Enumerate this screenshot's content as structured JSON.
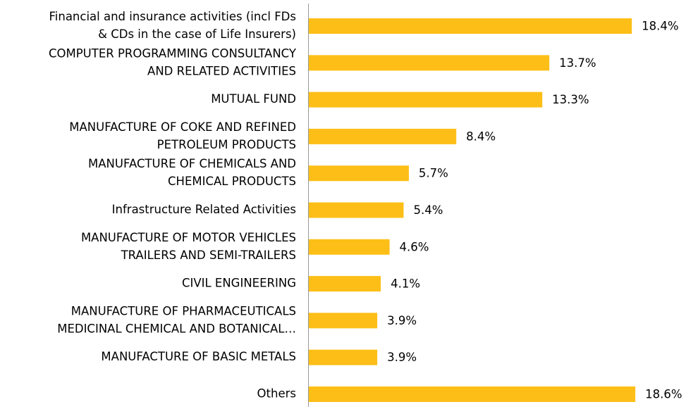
{
  "chart_data": {
    "type": "bar",
    "orientation": "horizontal",
    "color": "#fdbf17",
    "categories": [
      [
        "Financial and insurance activities (incl FDs",
        "& CDs in the case of Life Insurers)"
      ],
      [
        "COMPUTER PROGRAMMING  CONSULTANCY",
        "AND RELATED ACTIVITIES"
      ],
      [
        "MUTUAL FUND"
      ],
      [
        "MANUFACTURE OF COKE AND REFINED",
        "PETROLEUM PRODUCTS"
      ],
      [
        "MANUFACTURE OF CHEMICALS AND",
        "CHEMICAL PRODUCTS"
      ],
      [
        "Infrastructure Related Activities"
      ],
      [
        "MANUFACTURE OF MOTOR VEHICLES",
        "TRAILERS AND SEMI-TRAILERS"
      ],
      [
        "CIVIL ENGINEERING"
      ],
      [
        "MANUFACTURE OF PHARMACEUTICALS",
        "MEDICINAL CHEMICAL AND BOTANICAL…"
      ],
      [
        "MANUFACTURE OF BASIC METALS"
      ],
      [
        "Others"
      ]
    ],
    "values": [
      18.4,
      13.7,
      13.3,
      8.4,
      5.7,
      5.4,
      4.6,
      4.1,
      3.9,
      3.9,
      18.6
    ],
    "value_labels": [
      "18.4%",
      "13.7%",
      "13.3%",
      "8.4%",
      "5.7%",
      "5.4%",
      "4.6%",
      "4.1%",
      "3.9%",
      "3.9%",
      "18.6%"
    ]
  }
}
